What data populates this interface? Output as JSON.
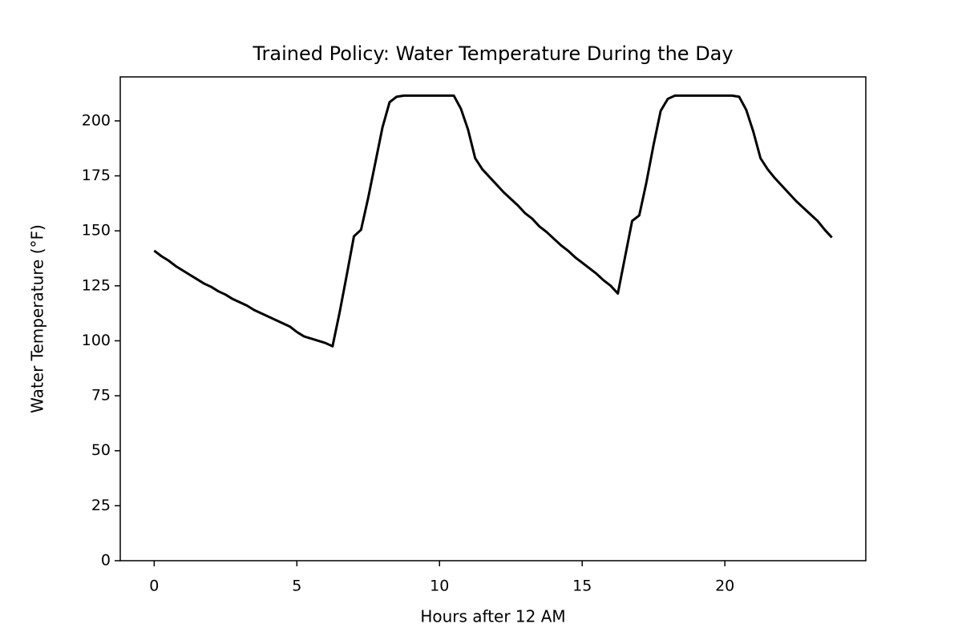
{
  "chart_data": {
    "type": "line",
    "title": "Trained Policy: Water Temperature During the Day",
    "x_label": "Hours after 12 AM",
    "y_label": "Water Temperature (°F)",
    "color": "#000000",
    "x": [
      0,
      0.25,
      0.5,
      0.75,
      1,
      1.25,
      1.5,
      1.75,
      2,
      2.25,
      2.5,
      2.75,
      3,
      3.25,
      3.5,
      3.75,
      4,
      4.25,
      4.5,
      4.75,
      5,
      5.25,
      5.5,
      5.75,
      6,
      6.25,
      6.5,
      6.75,
      7,
      7.25,
      7.5,
      7.75,
      8,
      8.25,
      8.5,
      8.75,
      9,
      9.25,
      9.5,
      9.75,
      10,
      10.25,
      10.5,
      10.75,
      11,
      11.25,
      11.5,
      11.75,
      12,
      12.25,
      12.5,
      12.75,
      13,
      13.25,
      13.5,
      13.75,
      14,
      14.25,
      14.5,
      14.75,
      15,
      15.25,
      15.5,
      15.75,
      16,
      16.25,
      16.5,
      16.75,
      17,
      17.25,
      17.5,
      17.75,
      18,
      18.25,
      18.5,
      18.75,
      19,
      19.25,
      19.5,
      19.75,
      20,
      20.25,
      20.5,
      20.75,
      21,
      21.25,
      21.5,
      21.75,
      22,
      22.25,
      22.5,
      22.75,
      23,
      23.25,
      23.5,
      23.75
    ],
    "values": [
      141,
      138.5,
      136.5,
      134,
      132,
      130,
      128,
      126,
      124.5,
      122.5,
      121,
      119,
      117.5,
      116,
      114,
      112.5,
      111,
      109.5,
      108,
      106.5,
      104,
      102,
      101,
      100,
      99,
      97.5,
      113,
      130,
      147.5,
      150.5,
      165,
      181,
      197,
      208.5,
      211,
      211.5,
      211.5,
      211.5,
      211.5,
      211.5,
      211.5,
      211.5,
      211.5,
      205.5,
      196,
      183,
      178,
      174.5,
      171,
      167.5,
      164.5,
      161.5,
      158,
      155.5,
      152,
      149.5,
      146.5,
      143.5,
      141,
      138,
      135.5,
      133,
      130.5,
      127.5,
      125,
      121.5,
      138,
      154.5,
      157,
      172,
      189,
      204.5,
      210,
      211.5,
      211.5,
      211.5,
      211.5,
      211.5,
      211.5,
      211.5,
      211.5,
      211.5,
      211,
      205,
      195,
      183,
      178,
      174,
      170.5,
      167,
      163.5,
      160.5,
      157.5,
      154.5,
      150.5,
      147
    ],
    "xlim": [
      -1.19,
      24.94
    ],
    "xticks": [
      0,
      5,
      10,
      15,
      20
    ],
    "ylim": [
      0,
      220
    ],
    "yticks": [
      0,
      25,
      50,
      75,
      100,
      125,
      150,
      175,
      200
    ]
  }
}
